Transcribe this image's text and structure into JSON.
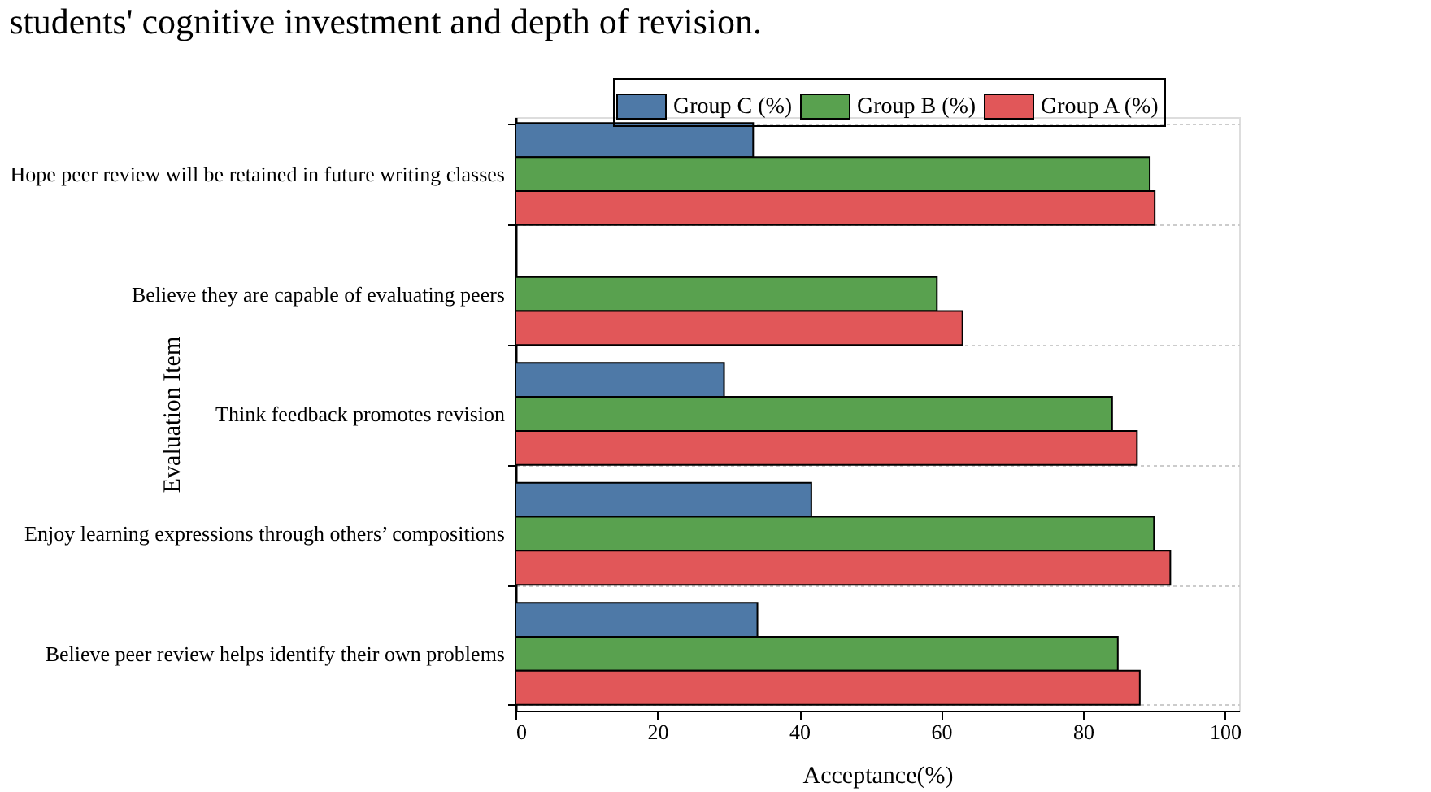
{
  "chart_data": {
    "type": "bar",
    "orientation": "horizontal",
    "title": "students' cognitive investment and depth of revision.",
    "xlabel": "Acceptance(%)",
    "ylabel": "Evaluation Item",
    "categories": [
      "Hope peer review will be retained in future writing classes",
      "Believe they are capable of evaluating peers",
      "Think feedback promotes revision",
      "Enjoy learning expressions through others’ compositions",
      "Believe peer review helps identify their own problems"
    ],
    "series": [
      {
        "name": "Group C (%)",
        "color": "#4e79a7",
        "values": [
          33.5,
          null,
          29.4,
          41.7,
          34.1
        ]
      },
      {
        "name": "Group B (%)",
        "color": "#59a14f",
        "values": [
          89.4,
          59.4,
          84.1,
          90.0,
          84.9
        ]
      },
      {
        "name": "Group A (%)",
        "color": "#e15759",
        "values": [
          90.1,
          63.0,
          87.6,
          92.3,
          88.0
        ]
      }
    ],
    "xlim": [
      0,
      102
    ],
    "xticks": [
      0,
      20,
      40,
      60,
      80,
      100
    ],
    "grid": "y",
    "legend": "top right"
  }
}
